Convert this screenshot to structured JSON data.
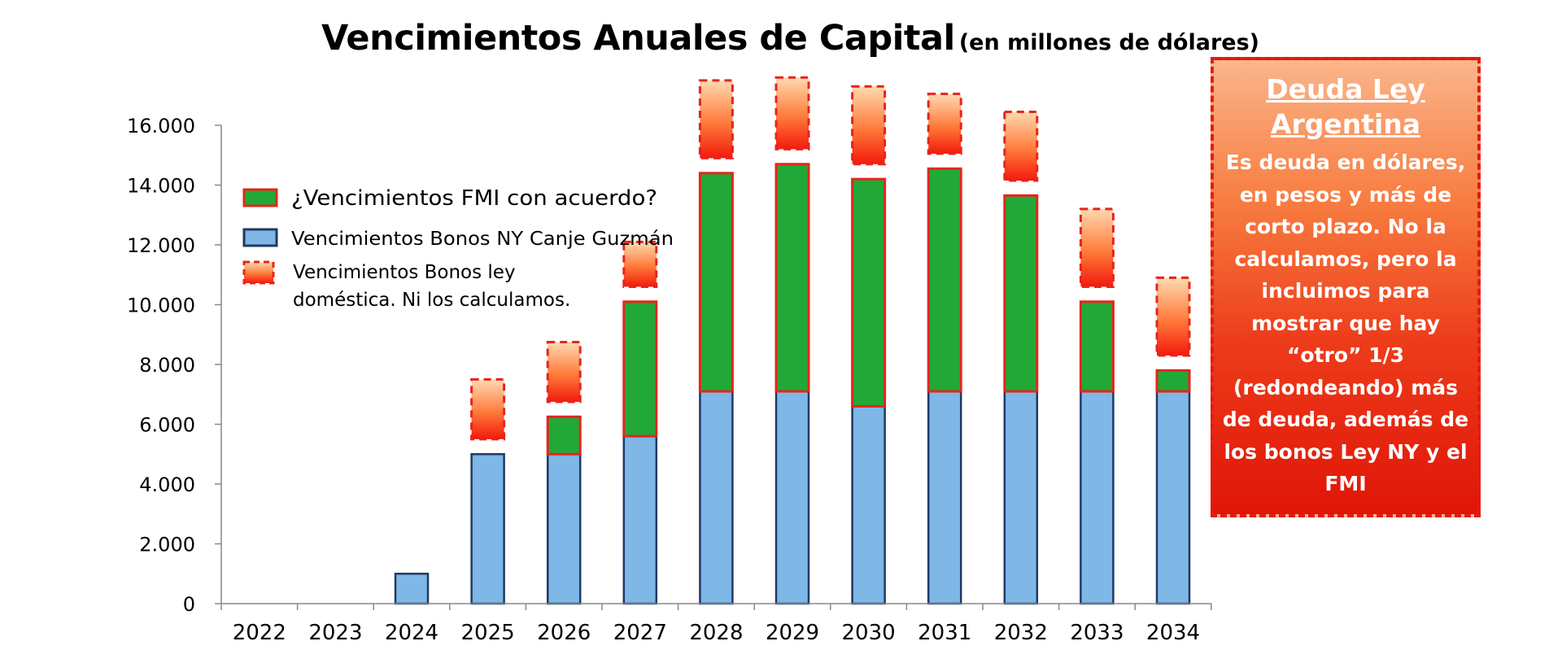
{
  "title": {
    "main": "Vencimientos Anuales de Capital",
    "sub": "(en millones de dólares)"
  },
  "note": {
    "title": "Deuda Ley Argentina",
    "body": "Es deuda en dólares, en pesos y más de corto plazo. No la calculamos, pero la incluimos para mostrar que hay “otro” 1/3 (redondeando) más de deuda, además de los bonos Ley NY y el FMI"
  },
  "colors": {
    "bonos_ny": "#7fb7e6",
    "bonos_ny_border": "#1f3a63",
    "fmi": "#22a837",
    "fmi_border": "#e8241b",
    "domestica_top": "#ffd9b0",
    "domestica_mid": "#ff7a3a",
    "domestica_bottom": "#f21a0c",
    "domestica_border": "#e8241b"
  },
  "legend": [
    {
      "key": "fmi",
      "label": "¿Vencimientos FMI con acuerdo?"
    },
    {
      "key": "bonos_ny",
      "label": "Vencimientos Bonos NY Canje Guzmán"
    },
    {
      "key": "domestica",
      "label": "Vencimientos Bonos ley doméstica. Ni los calculamos."
    }
  ],
  "chart_data": {
    "type": "bar",
    "title": "Vencimientos Anuales de Capital (en millones de dólares)",
    "xlabel": "",
    "ylabel": "",
    "ylim": [
      0,
      16000
    ],
    "yticks": [
      0,
      2000,
      4000,
      6000,
      8000,
      10000,
      12000,
      14000,
      16000
    ],
    "ytick_labels": [
      "0",
      "2.000",
      "4.000",
      "6.000",
      "8.000",
      "10.000",
      "12.000",
      "14.000",
      "16.000"
    ],
    "categories": [
      "2022",
      "2023",
      "2024",
      "2025",
      "2026",
      "2027",
      "2028",
      "2029",
      "2030",
      "2031",
      "2032",
      "2033",
      "2034"
    ],
    "legend_position": "top-left",
    "grid": false,
    "series": [
      {
        "name": "Vencimientos Bonos NY Canje Guzmán",
        "key": "bonos_ny",
        "stacked": true,
        "values": [
          0,
          0,
          1000,
          5000,
          5000,
          5600,
          7100,
          7100,
          6600,
          7100,
          7100,
          7100,
          7100
        ]
      },
      {
        "name": "¿Vencimientos FMI con acuerdo?",
        "key": "fmi",
        "stacked": true,
        "values": [
          0,
          0,
          0,
          0,
          1250,
          4500,
          7300,
          7600,
          7600,
          7450,
          6550,
          3000,
          700
        ]
      },
      {
        "name": "Vencimientos Bonos ley doméstica. Ni los calculamos.",
        "key": "domestica",
        "stacked": true,
        "offset_above": true,
        "values": [
          0,
          0,
          0,
          2000,
          2000,
          1500,
          2600,
          2400,
          2600,
          2000,
          2300,
          2600,
          2600
        ]
      }
    ]
  }
}
